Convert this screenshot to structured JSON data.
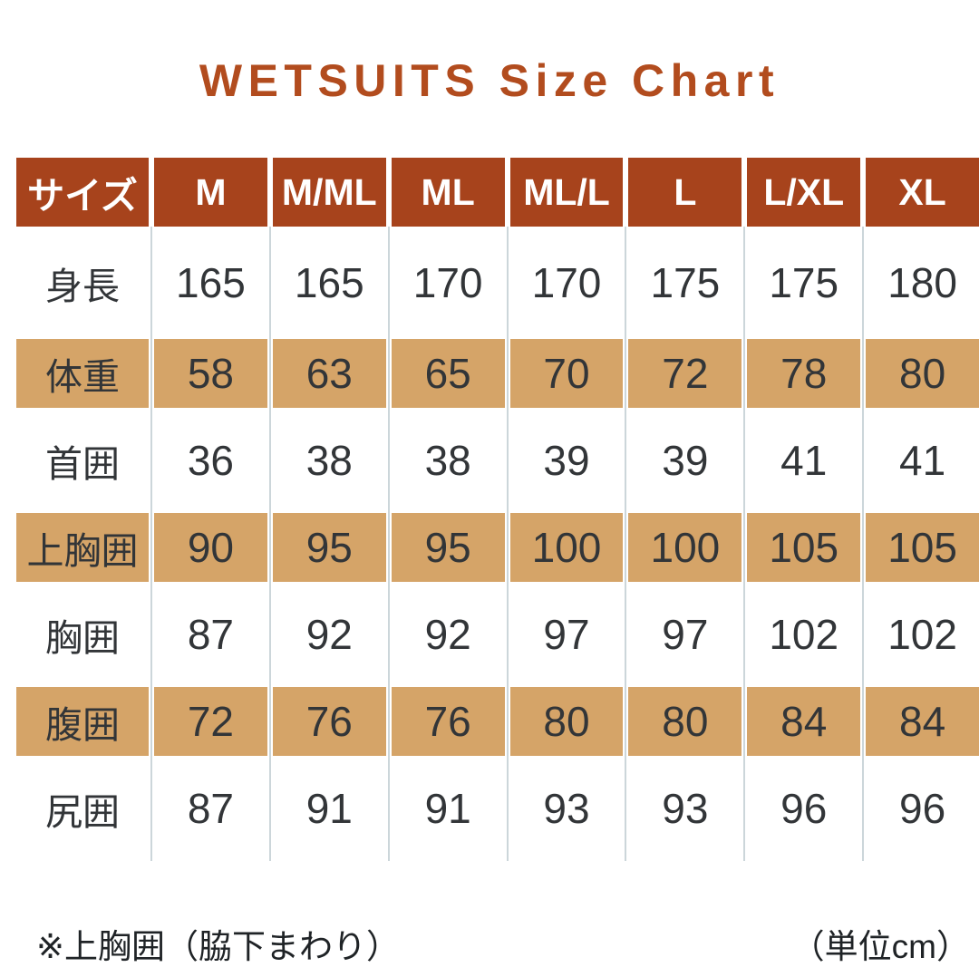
{
  "chart_data": {
    "type": "table",
    "title": "WETSUITS Size Chart",
    "unit": "cm",
    "unit_note": "（単位cm）",
    "footnote": "※上胸囲（脇下まわり）",
    "columns": [
      "サイズ",
      "M",
      "M/ML",
      "ML",
      "ML/L",
      "L",
      "L/XL",
      "XL"
    ],
    "rows": [
      {
        "label": "身長",
        "values": [
          "165",
          "165",
          "170",
          "170",
          "175",
          "175",
          "180"
        ]
      },
      {
        "label": "体重",
        "values": [
          "58",
          "63",
          "65",
          "70",
          "72",
          "78",
          "80"
        ]
      },
      {
        "label": "首囲",
        "values": [
          "36",
          "38",
          "38",
          "39",
          "39",
          "41",
          "41"
        ]
      },
      {
        "label": "上胸囲",
        "values": [
          "90",
          "95",
          "95",
          "100",
          "100",
          "105",
          "105"
        ]
      },
      {
        "label": "胸囲",
        "values": [
          "87",
          "92",
          "92",
          "97",
          "97",
          "102",
          "102"
        ]
      },
      {
        "label": "腹囲",
        "values": [
          "72",
          "76",
          "76",
          "80",
          "80",
          "84",
          "84"
        ]
      },
      {
        "label": "尻囲",
        "values": [
          "87",
          "91",
          "91",
          "93",
          "93",
          "96",
          "96"
        ]
      }
    ],
    "layout": {
      "highlighted_rows": [
        "体重",
        "上胸囲",
        "腹囲"
      ],
      "grid": "vertical dividers only",
      "header_position": "top row"
    }
  },
  "colors": {
    "title_color": "#b24c1e",
    "header_bg": "#a7431c",
    "header_text": "#ffffff",
    "row_alt_bg": "#d5a468",
    "body_text": "#323538",
    "divider": "#ccd6da",
    "footer_text": "#1f2326",
    "page_bg": "#ffffff",
    "bottom_bar": "#111111"
  }
}
